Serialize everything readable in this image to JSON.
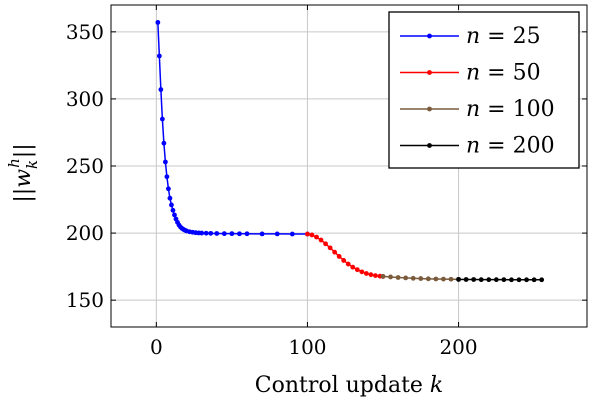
{
  "chart_data": {
    "type": "line",
    "xlabel": "Control update k",
    "ylabel": "||w_k^h||",
    "xlim": [
      -30,
      285
    ],
    "ylim": [
      130,
      370
    ],
    "xticks": [
      0,
      100,
      200
    ],
    "yticks": [
      150,
      200,
      250,
      300,
      350
    ],
    "grid": true,
    "legend_position": "top-right",
    "series": [
      {
        "name": "n = 25",
        "color": "#0000ff",
        "x": [
          1,
          2,
          3,
          4,
          5,
          6,
          7,
          8,
          9,
          10,
          11,
          12,
          13,
          14,
          15,
          16,
          17,
          18,
          19,
          20,
          22,
          24,
          26,
          28,
          30,
          33,
          36,
          40,
          45,
          50,
          55,
          60,
          70,
          80,
          90,
          100
        ],
        "y": [
          357,
          332,
          307,
          285,
          267,
          253,
          242,
          233,
          226,
          221,
          217,
          213.5,
          210.5,
          208,
          206,
          204.5,
          203.5,
          202.7,
          202.1,
          201.6,
          201,
          200.6,
          200.3,
          200.1,
          200,
          199.9,
          199.8,
          199.7,
          199.6,
          199.6,
          199.5,
          199.5,
          199.4,
          199.4,
          199.3,
          199.3
        ]
      },
      {
        "name": "n = 50",
        "color": "#ff0000",
        "x": [
          100,
          103,
          106,
          109,
          112,
          115,
          118,
          121,
          124,
          127,
          130,
          133,
          136,
          139,
          142,
          145,
          148,
          150
        ],
        "y": [
          199.3,
          198.6,
          197,
          194.8,
          192,
          189,
          185.8,
          182.6,
          179.6,
          176.9,
          174.6,
          172.7,
          171.1,
          169.9,
          169,
          168.3,
          167.9,
          167.7
        ]
      },
      {
        "name": "n = 100",
        "color": "#7a5c3c",
        "x": [
          150,
          155,
          160,
          165,
          170,
          175,
          180,
          185,
          190,
          195,
          200
        ],
        "y": [
          167.7,
          167.3,
          166.9,
          166.6,
          166.3,
          166.1,
          165.9,
          165.8,
          165.7,
          165.6,
          165.5
        ]
      },
      {
        "name": "n = 200",
        "color": "#000000",
        "x": [
          200,
          205,
          210,
          215,
          220,
          225,
          230,
          235,
          240,
          245,
          250,
          255
        ],
        "y": [
          165.5,
          165.4,
          165.4,
          165.3,
          165.3,
          165.3,
          165.3,
          165.2,
          165.2,
          165.2,
          165.2,
          165.2
        ]
      }
    ]
  }
}
